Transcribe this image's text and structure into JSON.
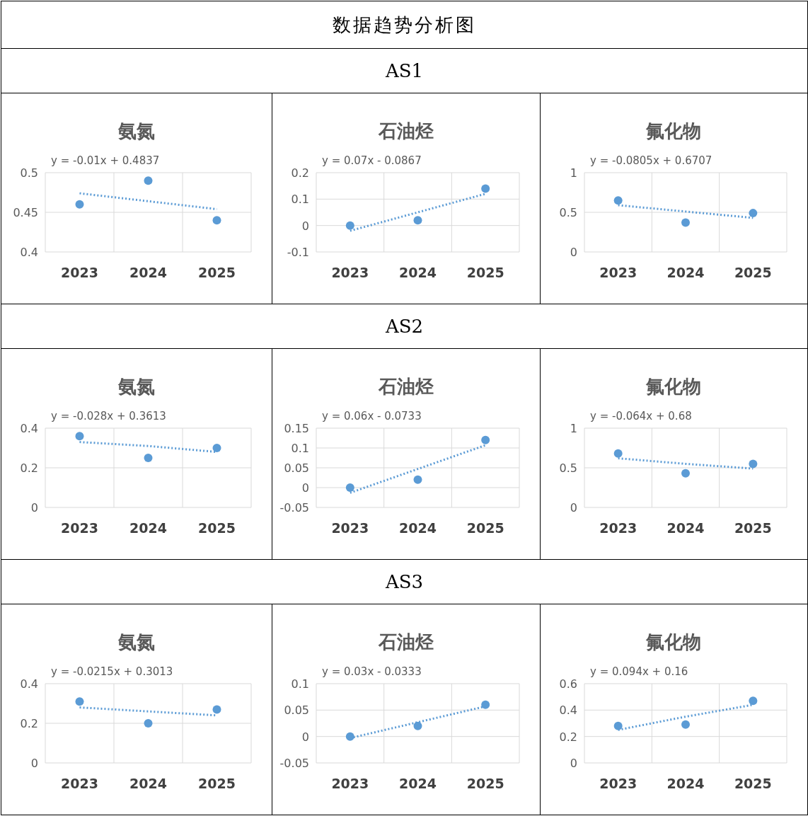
{
  "chart_data": [
    {
      "type": "other",
      "title": "数据趋势分析图"
    },
    {
      "type": "other",
      "title": "AS1"
    },
    {
      "type": "scatter",
      "title": "氨氮",
      "categories": [
        "2023",
        "2024",
        "2025"
      ],
      "ylim": [
        0.4,
        0.5
      ],
      "yticks": [
        0.4,
        0.45,
        0.5
      ],
      "grid": true,
      "annotations": [
        "y = -0.01x + 0.4837"
      ],
      "series": [
        {
          "color": "#5b9bd5",
          "marker": "circle",
          "values": [
            0.46,
            0.49,
            0.44
          ]
        },
        {
          "type": "line",
          "line_style": "dotted",
          "color": "#5b9bd5",
          "values": [
            0.474,
            0.464,
            0.454
          ]
        }
      ]
    },
    {
      "type": "scatter",
      "title": "石油烃",
      "categories": [
        "2023",
        "2024",
        "2025"
      ],
      "ylim": [
        -0.1,
        0.2
      ],
      "yticks": [
        -0.1,
        0,
        0.1,
        0.2
      ],
      "grid": true,
      "annotations": [
        "y = 0.07x - 0.0867"
      ],
      "series": [
        {
          "color": "#5b9bd5",
          "marker": "circle",
          "values": [
            0,
            0.02,
            0.14
          ]
        },
        {
          "type": "line",
          "line_style": "dotted",
          "color": "#5b9bd5",
          "values": [
            -0.02,
            0.05,
            0.12
          ]
        }
      ]
    },
    {
      "type": "scatter",
      "title": "氟化物",
      "categories": [
        "2023",
        "2024",
        "2025"
      ],
      "ylim": [
        0,
        1
      ],
      "yticks": [
        0,
        0.5,
        1
      ],
      "grid": true,
      "annotations": [
        "y = -0.0805x + 0.6707"
      ],
      "series": [
        {
          "color": "#5b9bd5",
          "marker": "circle",
          "values": [
            0.65,
            0.37,
            0.49
          ]
        },
        {
          "type": "line",
          "line_style": "dotted",
          "color": "#5b9bd5",
          "values": [
            0.59,
            0.51,
            0.43
          ]
        }
      ]
    },
    {
      "type": "other",
      "title": "AS2"
    },
    {
      "type": "scatter",
      "title": "氨氮",
      "categories": [
        "2023",
        "2024",
        "2025"
      ],
      "ylim": [
        0,
        0.4
      ],
      "yticks": [
        0,
        0.2,
        0.4
      ],
      "grid": true,
      "annotations": [
        "y = -0.028x + 0.3613"
      ],
      "series": [
        {
          "color": "#5b9bd5",
          "marker": "circle",
          "values": [
            0.36,
            0.25,
            0.3
          ]
        },
        {
          "type": "line",
          "line_style": "dotted",
          "color": "#5b9bd5",
          "values": [
            0.33,
            0.31,
            0.28
          ]
        }
      ]
    },
    {
      "type": "scatter",
      "title": "石油烃",
      "categories": [
        "2023",
        "2024",
        "2025"
      ],
      "ylim": [
        -0.05,
        0.15
      ],
      "yticks": [
        -0.05,
        0,
        0.05,
        0.1,
        0.15
      ],
      "grid": true,
      "annotations": [
        "y = 0.06x - 0.0733"
      ],
      "series": [
        {
          "color": "#5b9bd5",
          "marker": "circle",
          "values": [
            0,
            0.02,
            0.12
          ]
        },
        {
          "type": "line",
          "line_style": "dotted",
          "color": "#5b9bd5",
          "values": [
            -0.013,
            0.047,
            0.107
          ]
        }
      ]
    },
    {
      "type": "scatter",
      "title": "氟化物",
      "categories": [
        "2023",
        "2024",
        "2025"
      ],
      "ylim": [
        0,
        1
      ],
      "yticks": [
        0,
        0.5,
        1
      ],
      "grid": true,
      "annotations": [
        "y = -0.064x + 0.68"
      ],
      "series": [
        {
          "color": "#5b9bd5",
          "marker": "circle",
          "values": [
            0.68,
            0.43,
            0.55
          ]
        },
        {
          "type": "line",
          "line_style": "dotted",
          "color": "#5b9bd5",
          "values": [
            0.62,
            0.55,
            0.49
          ]
        }
      ]
    },
    {
      "type": "other",
      "title": "AS3"
    },
    {
      "type": "scatter",
      "title": "氨氮",
      "categories": [
        "2023",
        "2024",
        "2025"
      ],
      "ylim": [
        0,
        0.4
      ],
      "yticks": [
        0,
        0.2,
        0.4
      ],
      "grid": true,
      "annotations": [
        "y = -0.0215x + 0.3013"
      ],
      "series": [
        {
          "color": "#5b9bd5",
          "marker": "circle",
          "values": [
            0.31,
            0.2,
            0.27
          ]
        },
        {
          "type": "line",
          "line_style": "dotted",
          "color": "#5b9bd5",
          "values": [
            0.28,
            0.26,
            0.24
          ]
        }
      ]
    },
    {
      "type": "scatter",
      "title": "石油烃",
      "categories": [
        "2023",
        "2024",
        "2025"
      ],
      "ylim": [
        -0.05,
        0.1
      ],
      "yticks": [
        -0.05,
        0,
        0.05,
        0.1
      ],
      "grid": true,
      "annotations": [
        "y = 0.03x - 0.0333"
      ],
      "series": [
        {
          "color": "#5b9bd5",
          "marker": "circle",
          "values": [
            0,
            0.02,
            0.06
          ]
        },
        {
          "type": "line",
          "line_style": "dotted",
          "color": "#5b9bd5",
          "values": [
            -0.003,
            0.027,
            0.057
          ]
        }
      ]
    },
    {
      "type": "scatter",
      "title": "氟化物",
      "categories": [
        "2023",
        "2024",
        "2025"
      ],
      "ylim": [
        0,
        0.6
      ],
      "yticks": [
        0,
        0.2,
        0.4,
        0.6
      ],
      "grid": true,
      "annotations": [
        "y = 0.094x + 0.16"
      ],
      "series": [
        {
          "color": "#5b9bd5",
          "marker": "circle",
          "values": [
            0.28,
            0.29,
            0.47
          ]
        },
        {
          "type": "line",
          "line_style": "dotted",
          "color": "#5b9bd5",
          "values": [
            0.25,
            0.35,
            0.44
          ]
        }
      ]
    }
  ]
}
